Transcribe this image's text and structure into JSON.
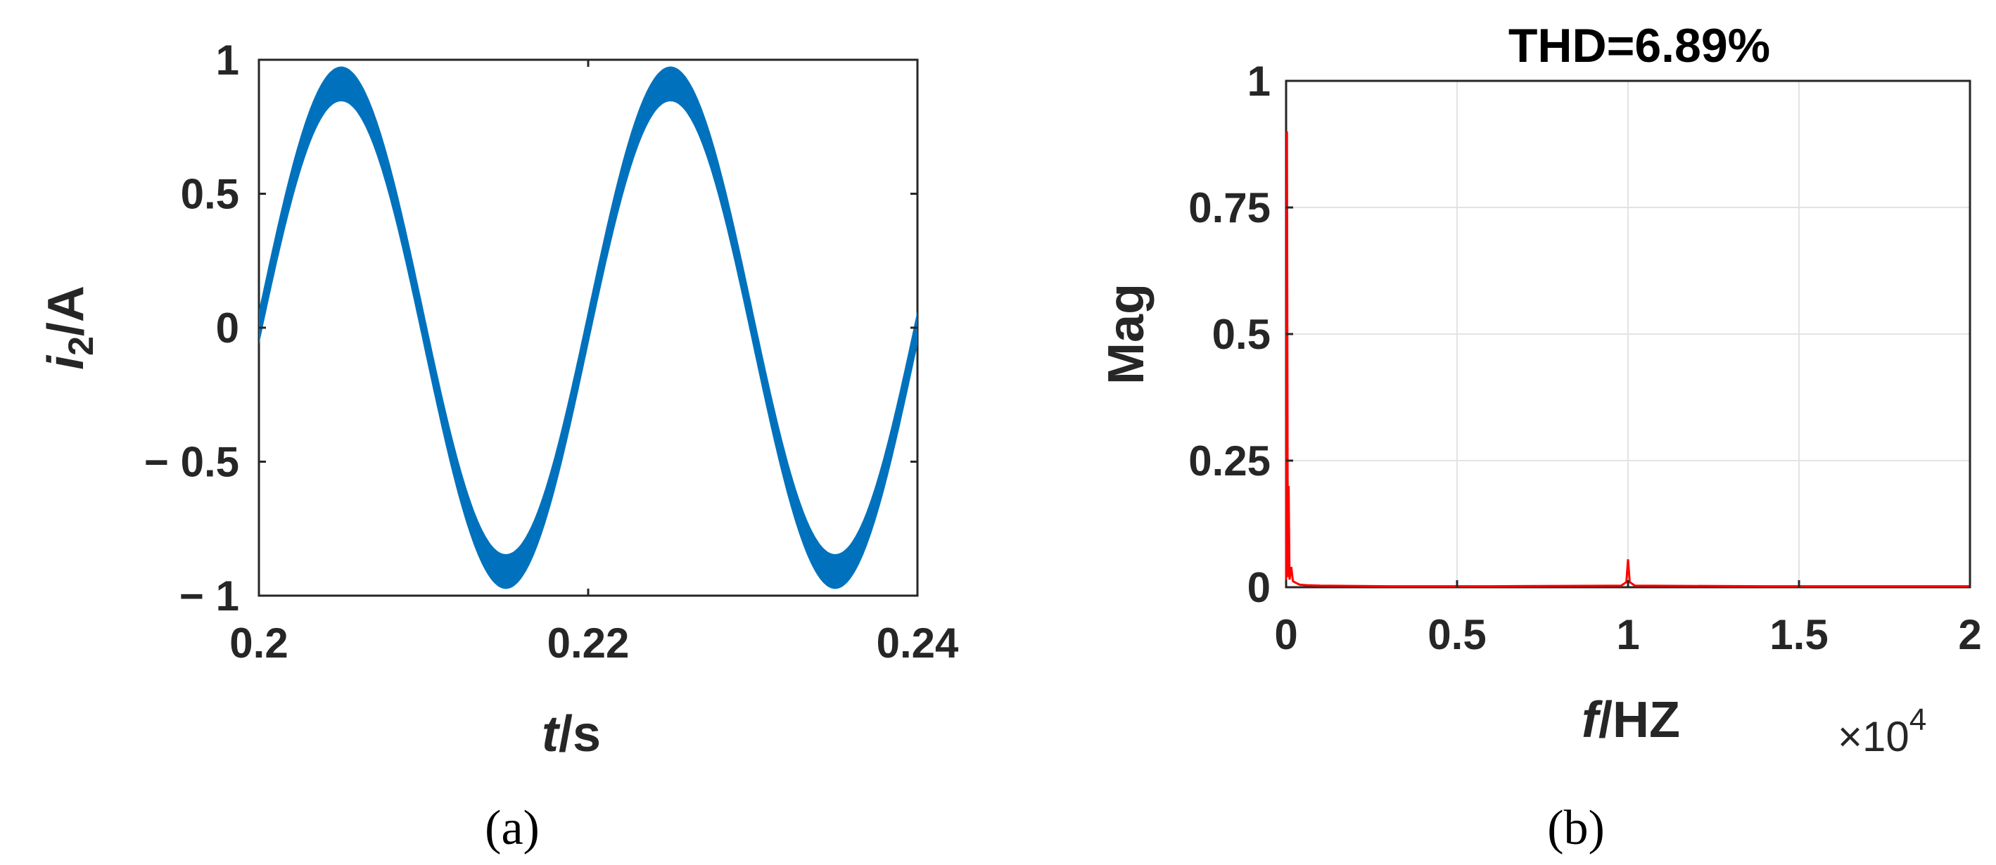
{
  "chart_data": [
    {
      "type": "line",
      "panel_label": "(a)",
      "title": "",
      "xlabel_var": "t",
      "xlabel_unit": "/s",
      "ylabel_var": "i",
      "ylabel_sub": "2",
      "ylabel_unit": "/A",
      "xlim": [
        0.2,
        0.24
      ],
      "ylim": [
        -1,
        1
      ],
      "xticks": [
        0.2,
        0.22,
        0.24
      ],
      "xtick_labels": [
        "0.2",
        "0.22",
        "0.24"
      ],
      "yticks": [
        -1,
        -0.5,
        0,
        0.5,
        1
      ],
      "ytick_labels": [
        "− 1",
        "− 0.5",
        "0",
        "0.5",
        "1"
      ],
      "grid": false,
      "series": [
        {
          "description_values": "sinusoid with superimposed switching ripple",
          "frequency_hz": 50,
          "amplitude": 0.91,
          "ripple_peak_to_peak": 0.13,
          "x_start": 0.2,
          "x_end": 0.24
        }
      ],
      "color": "#0072BD"
    },
    {
      "type": "line",
      "panel_label": "(b)",
      "title": "THD=6.89%",
      "xlabel_var": "f",
      "xlabel_unit": "/HZ",
      "ylabel": "Mag",
      "xlim": [
        0,
        2
      ],
      "ylim": [
        0,
        1
      ],
      "x_exponent_base": "×10",
      "x_exponent_power": "4",
      "xticks": [
        0,
        0.5,
        1,
        1.5,
        2
      ],
      "xtick_labels": [
        "0",
        "0.5",
        "1",
        "1.5",
        "2"
      ],
      "yticks": [
        0,
        0.25,
        0.5,
        0.75,
        1
      ],
      "ytick_labels": [
        "0",
        "0.25",
        "0.5",
        "0.75",
        "1"
      ],
      "grid": true,
      "series": [
        {
          "x": [
            0,
            0.0025,
            0.005,
            0.0075,
            0.01,
            0.015,
            0.02,
            0.03,
            0.04,
            0.06,
            0.1,
            0.3,
            0.6,
            0.98,
            0.995,
            1.0,
            1.005,
            1.02,
            1.4,
            1.8,
            2.0
          ],
          "y": [
            0.0,
            0.9,
            0.02,
            0.2,
            0.015,
            0.04,
            0.012,
            0.008,
            0.005,
            0.004,
            0.003,
            0.002,
            0.002,
            0.003,
            0.01,
            0.055,
            0.01,
            0.003,
            0.002,
            0.002,
            0.002
          ]
        }
      ],
      "color": "#ff0000"
    }
  ]
}
